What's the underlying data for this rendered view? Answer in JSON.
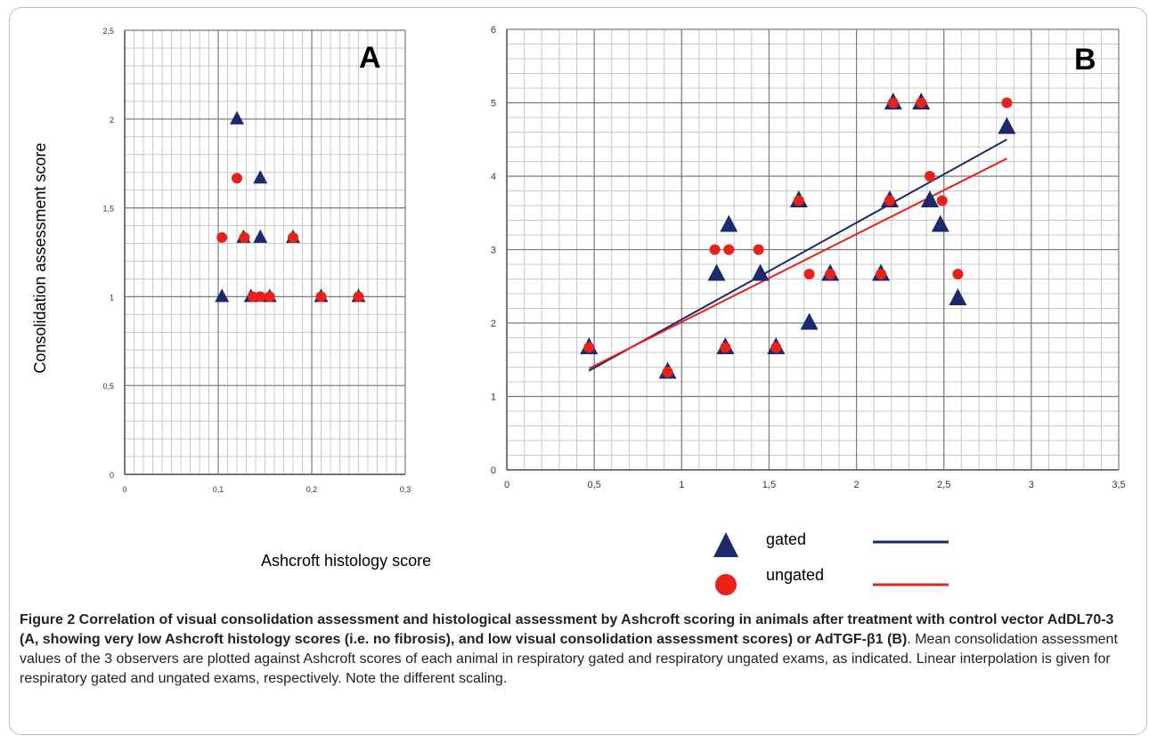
{
  "axis_titles": {
    "y": "Consolidation assessment score",
    "x": "Ashcroft histology score"
  },
  "legend": {
    "gated": "gated",
    "ungated": "ungated"
  },
  "colors": {
    "gated": "#1a2a6c",
    "ungated": "#e8221b",
    "gated_line": "#1a2a6c",
    "ungated_line": "#e8221b",
    "grid": "#c8c8c8",
    "major_grid": "#7a7a7a"
  },
  "caption": {
    "bold": "Figure 2 Correlation of visual consolidation assessment and histological assessment by Ashcroft scoring in animals after treatment with control vector AdDL70-3 (A, showing very low Ashcroft histology scores (i.e. no fibrosis), and low visual consolidation assessment scores) or AdTGF-β1 (B)",
    "normal": ". Mean consolidation assessment values of the 3 observers are plotted against Ashcroft scores of each animal in respiratory gated and respiratory ungated exams, as indicated. Linear interpolation is given for respiratory gated and ungated exams, respectively. Note the different scaling."
  },
  "chart_data": [
    {
      "panel": "A",
      "type": "scatter",
      "xlim": [
        0,
        0.3
      ],
      "ylim": [
        0,
        2.5
      ],
      "x_ticks": [
        0,
        0.1,
        0.2,
        0.3
      ],
      "x_tick_labels": [
        "0",
        "0,1",
        "0,2",
        "0,3"
      ],
      "y_ticks": [
        0,
        0.5,
        1,
        1.5,
        2,
        2.5
      ],
      "y_tick_labels": [
        "0",
        "0,5",
        "1",
        "1,5",
        "2",
        "2,5"
      ],
      "grid": true,
      "series": [
        {
          "name": "gated",
          "marker": "triangle",
          "points": [
            [
              0.104,
              1.0
            ],
            [
              0.12,
              2.0
            ],
            [
              0.127,
              1.333
            ],
            [
              0.135,
              1.0
            ],
            [
              0.145,
              1.667
            ],
            [
              0.145,
              1.333
            ],
            [
              0.155,
              1.0
            ],
            [
              0.18,
              1.333
            ],
            [
              0.21,
              1.0
            ],
            [
              0.25,
              1.0
            ]
          ]
        },
        {
          "name": "ungated",
          "marker": "circle",
          "points": [
            [
              0.104,
              1.333
            ],
            [
              0.12,
              1.667
            ],
            [
              0.128,
              1.333
            ],
            [
              0.137,
              1.0
            ],
            [
              0.145,
              1.0
            ],
            [
              0.155,
              1.0
            ],
            [
              0.18,
              1.333
            ],
            [
              0.21,
              1.0
            ],
            [
              0.25,
              1.0
            ]
          ]
        }
      ]
    },
    {
      "panel": "B",
      "type": "scatter",
      "xlim": [
        0,
        3.5
      ],
      "ylim": [
        0,
        6
      ],
      "x_ticks": [
        0,
        0.5,
        1,
        1.5,
        2,
        2.5,
        3,
        3.5
      ],
      "x_tick_labels": [
        "0",
        "0,5",
        "1",
        "1,5",
        "2",
        "2,5",
        "3",
        "3,5"
      ],
      "y_ticks": [
        0,
        1,
        2,
        3,
        4,
        5,
        6
      ],
      "y_tick_labels": [
        "0",
        "1",
        "2",
        "3",
        "4",
        "5",
        "6"
      ],
      "grid": true,
      "series": [
        {
          "name": "gated",
          "marker": "triangle",
          "points": [
            [
              0.47,
              1.667
            ],
            [
              0.92,
              1.333
            ],
            [
              1.2,
              2.667
            ],
            [
              1.25,
              1.667
            ],
            [
              1.27,
              3.333
            ],
            [
              1.45,
              2.667
            ],
            [
              1.54,
              1.667
            ],
            [
              1.67,
              3.667
            ],
            [
              1.73,
              2.0
            ],
            [
              1.85,
              2.667
            ],
            [
              2.14,
              2.667
            ],
            [
              2.19,
              3.667
            ],
            [
              2.21,
              5.0
            ],
            [
              2.37,
              5.0
            ],
            [
              2.42,
              3.667
            ],
            [
              2.48,
              3.333
            ],
            [
              2.58,
              2.333
            ],
            [
              2.86,
              4.667
            ]
          ]
        },
        {
          "name": "ungated",
          "marker": "circle",
          "points": [
            [
              0.47,
              1.667
            ],
            [
              0.92,
              1.333
            ],
            [
              1.19,
              3.0
            ],
            [
              1.25,
              1.667
            ],
            [
              1.27,
              3.0
            ],
            [
              1.44,
              3.0
            ],
            [
              1.54,
              1.667
            ],
            [
              1.67,
              3.667
            ],
            [
              1.73,
              2.667
            ],
            [
              1.85,
              2.667
            ],
            [
              2.14,
              2.667
            ],
            [
              2.19,
              3.667
            ],
            [
              2.21,
              5.0
            ],
            [
              2.37,
              5.0
            ],
            [
              2.42,
              4.0
            ],
            [
              2.49,
              3.667
            ],
            [
              2.58,
              2.667
            ],
            [
              2.86,
              5.0
            ]
          ]
        }
      ],
      "trendlines": [
        {
          "name": "gated",
          "x": [
            0.47,
            2.86
          ],
          "y": [
            1.35,
            4.5
          ]
        },
        {
          "name": "ungated",
          "x": [
            0.47,
            2.86
          ],
          "y": [
            1.38,
            4.24
          ]
        }
      ]
    }
  ]
}
